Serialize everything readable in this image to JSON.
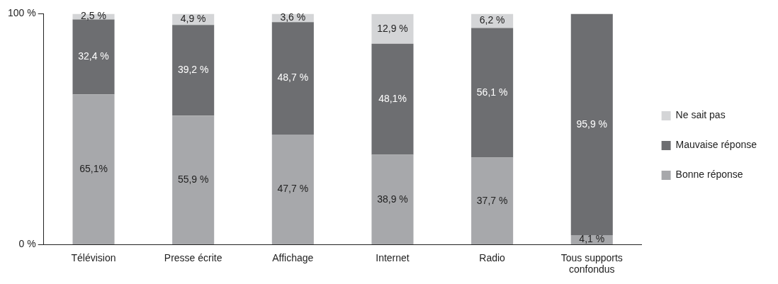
{
  "chart_data": {
    "type": "bar",
    "stacked": true,
    "categories": [
      "Télévision",
      "Presse écrite",
      "Affichage",
      "Internet",
      "Radio",
      "Tous supports confondus"
    ],
    "series": [
      {
        "name": "Bonne réponse",
        "color": "#a7a8ab",
        "values": [
          65.1,
          55.9,
          47.7,
          38.9,
          37.7,
          4.1
        ],
        "value_labels": [
          "65,1%",
          "55,9 %",
          "47,7 %",
          "38,9 %",
          "37,7 %",
          "4,1 %"
        ]
      },
      {
        "name": "Mauvaise réponse",
        "color": "#6d6e71",
        "values": [
          32.4,
          39.2,
          48.7,
          48.1,
          56.1,
          95.9
        ],
        "value_labels": [
          "32,4 %",
          "39,2 %",
          "48,7 %",
          "48,1%",
          "56,1 %",
          "95,9 %"
        ]
      },
      {
        "name": "Ne sait pas",
        "color": "#d4d5d7",
        "values": [
          2.5,
          4.9,
          3.6,
          12.9,
          6.2,
          null
        ],
        "value_labels": [
          "2,5 %",
          "4,9 %",
          "3,6 %",
          "12,9 %",
          "6,2 %",
          null
        ]
      }
    ],
    "ylim": [
      0,
      100
    ],
    "yticks": [
      {
        "value": 0,
        "label": "0 %"
      },
      {
        "value": 100,
        "label": "100 %"
      }
    ],
    "grid": false,
    "legend": "right"
  }
}
